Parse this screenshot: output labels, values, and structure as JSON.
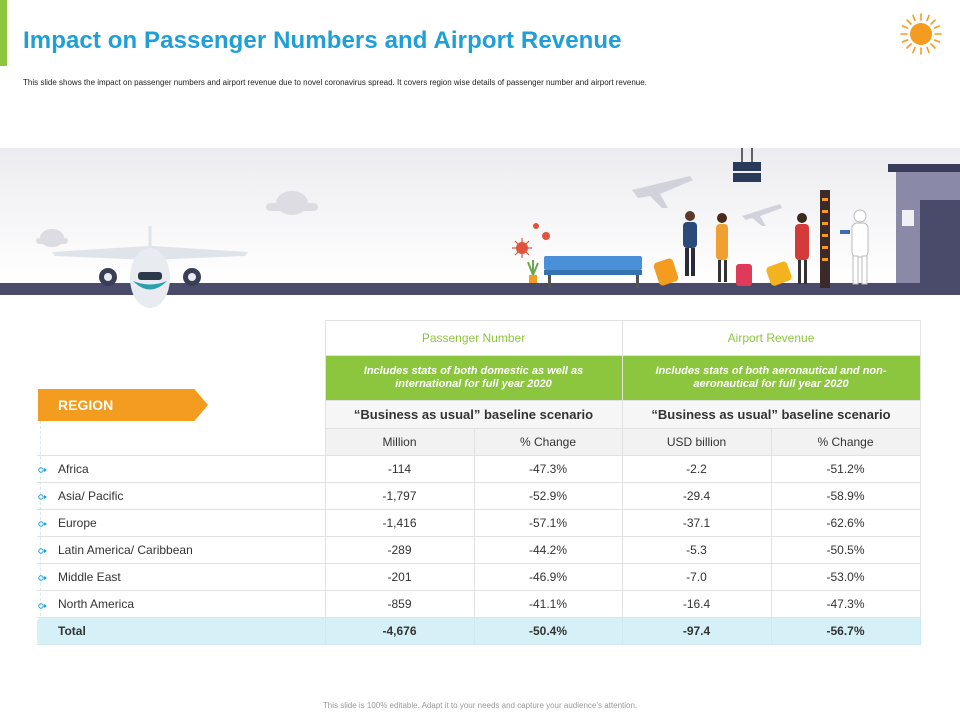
{
  "header": {
    "title": "Impact on Passenger Numbers and Airport Revenue",
    "subtitle": "This slide shows the impact on passenger numbers and airport revenue due to novel coronavirus spread. It covers region wise details of passenger number and airport revenue."
  },
  "table": {
    "region_tag": "REGION",
    "groups": [
      {
        "title": "Passenger Number",
        "description": "Includes stats of both domestic as well as international for full year 2020",
        "scenario": "“Business  as usual”  baseline scenario",
        "units": [
          "Million",
          "% Change"
        ]
      },
      {
        "title": "Airport Revenue",
        "description": "Includes stats of both aeronautical and non-aeronautical for full year 2020",
        "scenario": "“Business  as usual”  baseline scenario",
        "units": [
          "USD billion",
          "% Change"
        ]
      }
    ],
    "rows": [
      {
        "region": "Africa",
        "pax_million": "-114",
        "pax_change": "-47.3%",
        "rev_usd": "-2.2",
        "rev_change": "-51.2%"
      },
      {
        "region": "Asia/ Pacific",
        "pax_million": "-1,797",
        "pax_change": "-52.9%",
        "rev_usd": "-29.4",
        "rev_change": "-58.9%"
      },
      {
        "region": "Europe",
        "pax_million": "-1,416",
        "pax_change": "-57.1%",
        "rev_usd": "-37.1",
        "rev_change": "-62.6%"
      },
      {
        "region": "Latin America/ Caribbean",
        "pax_million": "-289",
        "pax_change": "-44.2%",
        "rev_usd": "-5.3",
        "rev_change": "-50.5%"
      },
      {
        "region": "Middle East",
        "pax_million": "-201",
        "pax_change": "-46.9%",
        "rev_usd": "-7.0",
        "rev_change": "-53.0%"
      },
      {
        "region": "North America",
        "pax_million": "-859",
        "pax_change": "-41.1%",
        "rev_usd": "-16.4",
        "rev_change": "-47.3%"
      }
    ],
    "total": {
      "region": "Total",
      "pax_million": "-4,676",
      "pax_change": "-50.4%",
      "rev_usd": "-97.4",
      "rev_change": "-56.7%"
    }
  },
  "footer": "This slide is 100% editable. Adapt it to your needs and capture your audience’s attention.",
  "colors": {
    "title": "#1e9fd8",
    "accent_green": "#8cc63f",
    "region_orange": "#f39c1f",
    "total_row": "#d6f0f8",
    "runway": "#4a4a6a"
  },
  "icons": [
    "sun-icon",
    "airplane-icon",
    "virus-icon",
    "bench-icon",
    "travelers-icon",
    "terminal-icon"
  ]
}
